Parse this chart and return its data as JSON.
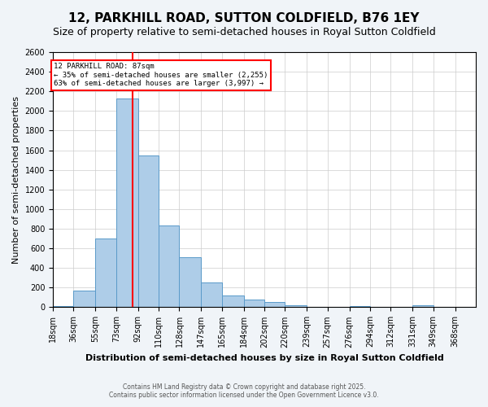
{
  "title": "12, PARKHILL ROAD, SUTTON COLDFIELD, B76 1EY",
  "subtitle": "Size of property relative to semi-detached houses in Royal Sutton Coldfield",
  "xlabel": "Distribution of semi-detached houses by size in Royal Sutton Coldfield",
  "ylabel": "Number of semi-detached properties",
  "footer_line1": "Contains HM Land Registry data © Crown copyright and database right 2025.",
  "footer_line2": "Contains public sector information licensed under the Open Government Licence v3.0.",
  "property_label": "12 PARKHILL ROAD: 87sqm",
  "arrow_left": "← 35% of semi-detached houses are smaller (2,255)",
  "arrow_right": "63% of semi-detached houses are larger (3,997) →",
  "property_value": 87,
  "bar_edges": [
    18,
    36,
    55,
    73,
    92,
    110,
    128,
    147,
    165,
    184,
    202,
    220,
    239,
    257,
    276,
    294,
    312,
    331,
    349,
    368,
    386
  ],
  "bar_heights": [
    15,
    170,
    700,
    2130,
    1550,
    830,
    510,
    250,
    120,
    75,
    50,
    20,
    0,
    0,
    15,
    0,
    0,
    20,
    0,
    0
  ],
  "bar_color": "#aecde8",
  "bar_edge_color": "#5a9ac9",
  "vline_color": "red",
  "vline_x": 87,
  "ylim": [
    0,
    2600
  ],
  "yticks": [
    0,
    200,
    400,
    600,
    800,
    1000,
    1200,
    1400,
    1600,
    1800,
    2000,
    2200,
    2400,
    2600
  ],
  "bg_color": "#f0f4f8",
  "plot_bg": "#ffffff",
  "title_fontsize": 11,
  "subtitle_fontsize": 9,
  "axis_label_fontsize": 8,
  "tick_fontsize": 7
}
